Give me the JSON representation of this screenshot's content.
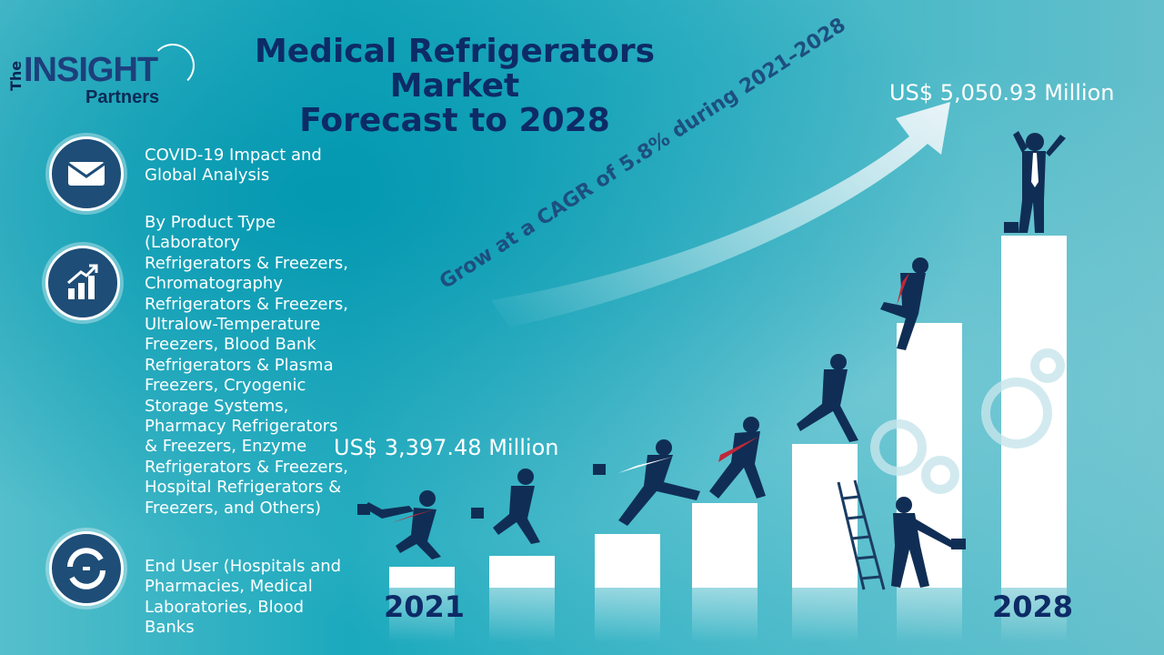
{
  "logo": {
    "the": "The",
    "insight": "INSIGHT",
    "partners": "Partners"
  },
  "title": {
    "line1": "Medical Refrigerators",
    "line2": "Market",
    "line3": "Forecast to 2028"
  },
  "sections": [
    {
      "icon": "envelope-icon",
      "text": "COVID-19 Impact and Global Analysis"
    },
    {
      "icon": "growth-chart-icon",
      "text": "By Product Type (Laboratory Refrigerators & Freezers, Chromatography Refrigerators & Freezers, Ultralow-Temperature Freezers, Blood Bank Refrigerators & Plasma Freezers, Cryogenic Storage Systems, Pharmacy Refrigerators & Freezers, Enzyme Refrigerators & Freezers, Hospital Refrigerators & Freezers, and Others)"
    },
    {
      "icon": "handshake-icon",
      "text": "End User (Hospitals and Pharmacies, Medical Laboratories, Blood Banks"
    }
  ],
  "values": {
    "start": "US$  3,397.48 Million",
    "end": "US$ 5,050.93 Million"
  },
  "cagr": "Grow at a CAGR of 5.8% during 2021–2028",
  "years": {
    "start": "2021",
    "end": "2028"
  },
  "steps": [
    0.075,
    0.115,
    0.198,
    0.31,
    0.525,
    0.97,
    1.29
  ],
  "colors": {
    "navy": "#0d2b66",
    "accent_red": "#c0283a",
    "figure": "#102e55"
  }
}
